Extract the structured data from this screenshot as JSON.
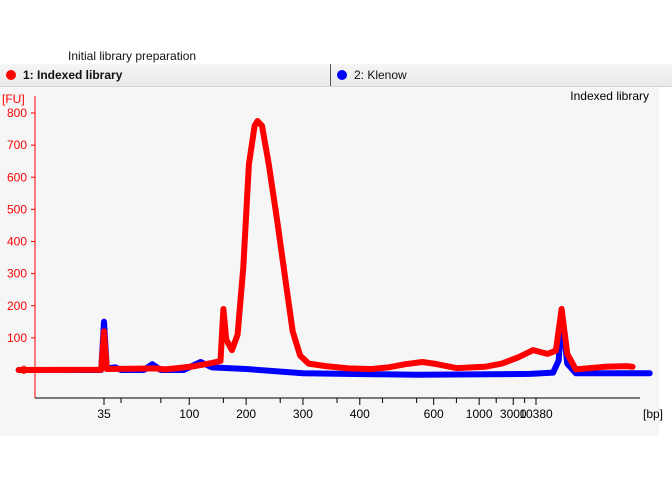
{
  "header": {
    "title": "Initial library preparation"
  },
  "legend": [
    {
      "label": "1: Indexed library",
      "color": "#ff0000"
    },
    {
      "label": "2: Klenow",
      "color": "#0000ff"
    }
  ],
  "chart_data": {
    "type": "line",
    "title": "Indexed library",
    "ylabel": "[FU]",
    "xlabel": "[bp]",
    "ylim": [
      -85,
      850
    ],
    "yticks": [
      0,
      100,
      200,
      300,
      400,
      500,
      600,
      700,
      800
    ],
    "x_tick_labels": [
      "35",
      "100",
      "200",
      "300",
      "400",
      "600",
      "1000",
      "3000",
      "10380"
    ],
    "x_tick_positions_s": [
      35,
      50,
      60,
      70,
      80,
      93,
      101,
      107,
      111
    ],
    "x_range_s": [
      20,
      126
    ],
    "x_unit": "migration time (s) mapped to bp ladder",
    "series": [
      {
        "name": "1: Indexed library",
        "color": "#ff0000",
        "points": [
          [
            20,
            0
          ],
          [
            34.5,
            1
          ],
          [
            35,
            120
          ],
          [
            35.5,
            3
          ],
          [
            40,
            4
          ],
          [
            44,
            5
          ],
          [
            45.7,
            2
          ],
          [
            48,
            6
          ],
          [
            51,
            12
          ],
          [
            54,
            22
          ],
          [
            55.5,
            28
          ],
          [
            56,
            190
          ],
          [
            56.5,
            95
          ],
          [
            57.5,
            62
          ],
          [
            58.5,
            110
          ],
          [
            59.5,
            320
          ],
          [
            60.5,
            640
          ],
          [
            61.5,
            760
          ],
          [
            62,
            775
          ],
          [
            62.8,
            760
          ],
          [
            64,
            640
          ],
          [
            65.5,
            460
          ],
          [
            67,
            270
          ],
          [
            68.2,
            120
          ],
          [
            69.5,
            45
          ],
          [
            71,
            20
          ],
          [
            74,
            12
          ],
          [
            78,
            5
          ],
          [
            82,
            3
          ],
          [
            85,
            8
          ],
          [
            88,
            18
          ],
          [
            91,
            25
          ],
          [
            93,
            20
          ],
          [
            97,
            6
          ],
          [
            102,
            10
          ],
          [
            105,
            20
          ],
          [
            108,
            40
          ],
          [
            110.5,
            62
          ],
          [
            113,
            50
          ],
          [
            114.5,
            60
          ],
          [
            115.5,
            190
          ],
          [
            116.5,
            50
          ],
          [
            118,
            2
          ],
          [
            120,
            5
          ],
          [
            123,
            10
          ],
          [
            127,
            12
          ],
          [
            128,
            10
          ]
        ]
      },
      {
        "name": "2: Klenow",
        "color": "#0000ff",
        "points": [
          [
            20,
            0
          ],
          [
            34.5,
            0
          ],
          [
            35,
            150
          ],
          [
            35.5,
            5
          ],
          [
            37,
            8
          ],
          [
            38,
            0
          ],
          [
            42,
            0
          ],
          [
            43.5,
            18
          ],
          [
            45,
            0
          ],
          [
            49,
            0
          ],
          [
            52,
            25
          ],
          [
            54,
            8
          ],
          [
            60,
            3
          ],
          [
            70,
            -10
          ],
          [
            90,
            -15
          ],
          [
            110,
            -12
          ],
          [
            114,
            -8
          ],
          [
            115,
            30
          ],
          [
            115.5,
            175
          ],
          [
            116.5,
            20
          ],
          [
            118,
            -10
          ],
          [
            131,
            -10
          ]
        ]
      }
    ]
  }
}
